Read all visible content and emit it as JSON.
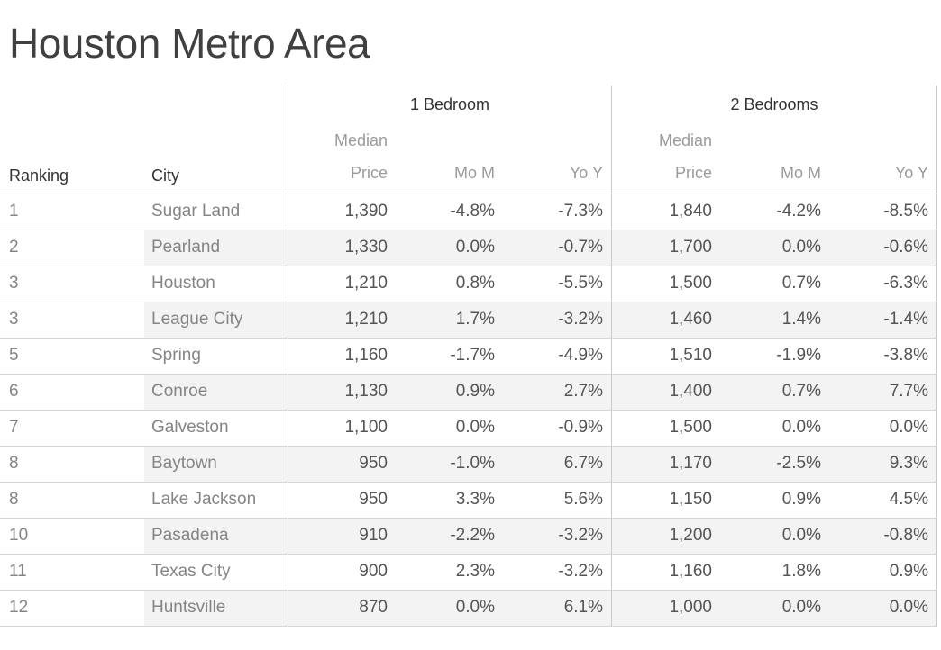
{
  "title": "Houston Metro Area",
  "header": {
    "ranking_label": "Ranking",
    "city_label": "City",
    "groups": [
      {
        "label": "1 Bedroom",
        "price_line1": "Median",
        "price_line2": "Price",
        "mom": "Mo M",
        "yoy": "Yo Y"
      },
      {
        "label": "2 Bedrooms",
        "price_line1": "Median",
        "price_line2": "Price",
        "mom": "Mo M",
        "yoy": "Yo Y"
      }
    ]
  },
  "table": {
    "rows": [
      {
        "ranking": "1",
        "city": "Sugar Land",
        "br1": {
          "price": "1,390",
          "mom": "-4.8%",
          "yoy": "-7.3%"
        },
        "br2": {
          "price": "1,840",
          "mom": "-4.2%",
          "yoy": "-8.5%"
        }
      },
      {
        "ranking": "2",
        "city": "Pearland",
        "br1": {
          "price": "1,330",
          "mom": "0.0%",
          "yoy": "-0.7%"
        },
        "br2": {
          "price": "1,700",
          "mom": "0.0%",
          "yoy": "-0.6%"
        }
      },
      {
        "ranking": "3",
        "city": "Houston",
        "br1": {
          "price": "1,210",
          "mom": "0.8%",
          "yoy": "-5.5%"
        },
        "br2": {
          "price": "1,500",
          "mom": "0.7%",
          "yoy": "-6.3%"
        }
      },
      {
        "ranking": "3",
        "city": "League City",
        "br1": {
          "price": "1,210",
          "mom": "1.7%",
          "yoy": "-3.2%"
        },
        "br2": {
          "price": "1,460",
          "mom": "1.4%",
          "yoy": "-1.4%"
        }
      },
      {
        "ranking": "5",
        "city": "Spring",
        "br1": {
          "price": "1,160",
          "mom": "-1.7%",
          "yoy": "-4.9%"
        },
        "br2": {
          "price": "1,510",
          "mom": "-1.9%",
          "yoy": "-3.8%"
        }
      },
      {
        "ranking": "6",
        "city": "Conroe",
        "br1": {
          "price": "1,130",
          "mom": "0.9%",
          "yoy": "2.7%"
        },
        "br2": {
          "price": "1,400",
          "mom": "0.7%",
          "yoy": "7.7%"
        }
      },
      {
        "ranking": "7",
        "city": "Galveston",
        "br1": {
          "price": "1,100",
          "mom": "0.0%",
          "yoy": "-0.9%"
        },
        "br2": {
          "price": "1,500",
          "mom": "0.0%",
          "yoy": "0.0%"
        }
      },
      {
        "ranking": "8",
        "city": "Baytown",
        "br1": {
          "price": "950",
          "mom": "-1.0%",
          "yoy": "6.7%"
        },
        "br2": {
          "price": "1,170",
          "mom": "-2.5%",
          "yoy": "9.3%"
        }
      },
      {
        "ranking": "8",
        "city": "Lake Jackson",
        "br1": {
          "price": "950",
          "mom": "3.3%",
          "yoy": "5.6%"
        },
        "br2": {
          "price": "1,150",
          "mom": "0.9%",
          "yoy": "4.5%"
        }
      },
      {
        "ranking": "10",
        "city": "Pasadena",
        "br1": {
          "price": "910",
          "mom": "-2.2%",
          "yoy": "-3.2%"
        },
        "br2": {
          "price": "1,200",
          "mom": "0.0%",
          "yoy": "-0.8%"
        }
      },
      {
        "ranking": "11",
        "city": "Texas City",
        "br1": {
          "price": "900",
          "mom": "2.3%",
          "yoy": "-3.2%"
        },
        "br2": {
          "price": "1,160",
          "mom": "1.8%",
          "yoy": "0.9%"
        }
      },
      {
        "ranking": "12",
        "city": "Huntsville",
        "br1": {
          "price": "870",
          "mom": "0.0%",
          "yoy": "6.1%"
        },
        "br2": {
          "price": "1,000",
          "mom": "0.0%",
          "yoy": "0.0%"
        }
      }
    ]
  },
  "colors": {
    "background": "#ffffff",
    "stripe": "#f3f3f3",
    "row_border": "#d6d6d6",
    "divider": "#c9c9c9",
    "title_text": "#404040",
    "header_text": "#323232",
    "subheader_text": "#9b9b9b",
    "label_text": "#858585",
    "value_text": "#545454"
  },
  "chart_data": {
    "type": "table",
    "title": "Houston Metro Area",
    "column_groups": [
      "1 Bedroom",
      "2 Bedrooms"
    ],
    "columns": [
      "Ranking",
      "City",
      "1 Bedroom Median Price",
      "1 Bedroom Mo M",
      "1 Bedroom Yo Y",
      "2 Bedrooms Median Price",
      "2 Bedrooms Mo M",
      "2 Bedrooms Yo Y"
    ],
    "rows": [
      [
        1,
        "Sugar Land",
        1390,
        "-4.8%",
        "-7.3%",
        1840,
        "-4.2%",
        "-8.5%"
      ],
      [
        2,
        "Pearland",
        1330,
        "0.0%",
        "-0.7%",
        1700,
        "0.0%",
        "-0.6%"
      ],
      [
        3,
        "Houston",
        1210,
        "0.8%",
        "-5.5%",
        1500,
        "0.7%",
        "-6.3%"
      ],
      [
        3,
        "League City",
        1210,
        "1.7%",
        "-3.2%",
        1460,
        "1.4%",
        "-1.4%"
      ],
      [
        5,
        "Spring",
        1160,
        "-1.7%",
        "-4.9%",
        1510,
        "-1.9%",
        "-3.8%"
      ],
      [
        6,
        "Conroe",
        1130,
        "0.9%",
        "2.7%",
        1400,
        "0.7%",
        "7.7%"
      ],
      [
        7,
        "Galveston",
        1100,
        "0.0%",
        "-0.9%",
        1500,
        "0.0%",
        "0.0%"
      ],
      [
        8,
        "Baytown",
        950,
        "-1.0%",
        "6.7%",
        1170,
        "-2.5%",
        "9.3%"
      ],
      [
        8,
        "Lake Jackson",
        950,
        "3.3%",
        "5.6%",
        1150,
        "0.9%",
        "4.5%"
      ],
      [
        10,
        "Pasadena",
        910,
        "-2.2%",
        "-3.2%",
        1200,
        "0.0%",
        "-0.8%"
      ],
      [
        11,
        "Texas City",
        900,
        "2.3%",
        "-3.2%",
        1160,
        "1.8%",
        "0.9%"
      ],
      [
        12,
        "Huntsville",
        870,
        "0.0%",
        "6.1%",
        1000,
        "0.0%",
        "0.0%"
      ]
    ]
  }
}
